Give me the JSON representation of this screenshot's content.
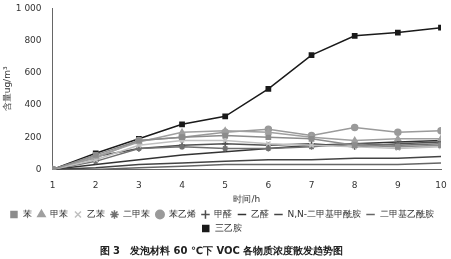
{
  "chart_data": {
    "type": "line",
    "title": "图 3　发泡材料 60 ℃下 VOC 各物质浓度散发趋势图",
    "x_label": "时间/h",
    "y_label": "含量ug/m³",
    "x": [
      1,
      2,
      3,
      4,
      5,
      6,
      7,
      8,
      9,
      10
    ],
    "xlim": [
      1,
      10
    ],
    "xticks": [
      1,
      2,
      3,
      4,
      5,
      6,
      7,
      8,
      9,
      10
    ],
    "ylim": [
      0,
      1000
    ],
    "yticks": [
      0,
      200,
      400,
      600,
      800,
      {
        "value": 1000,
        "label": "1 000"
      }
    ],
    "grid": false,
    "legend": "bottom",
    "series": [
      {
        "name": "苯",
        "color": "#8c8c8c",
        "marker": "square",
        "values": [
          0,
          90,
          180,
          200,
          210,
          200,
          190,
          150,
          140,
          150
        ]
      },
      {
        "name": "甲苯",
        "color": "#a0a0a0",
        "marker": "triangle",
        "values": [
          0,
          80,
          170,
          230,
          240,
          230,
          200,
          180,
          190,
          190
        ]
      },
      {
        "name": "乙苯",
        "color": "#c0c0c0",
        "marker": "x",
        "values": [
          0,
          60,
          150,
          180,
          180,
          160,
          150,
          140,
          130,
          140
        ]
      },
      {
        "name": "二甲苯",
        "color": "#707070",
        "marker": "star",
        "values": [
          0,
          50,
          130,
          140,
          130,
          130,
          140,
          160,
          150,
          160
        ]
      },
      {
        "name": "苯乙烯",
        "color": "#9a9a9a",
        "marker": "circle",
        "values": [
          0,
          70,
          180,
          200,
          230,
          250,
          210,
          260,
          230,
          240
        ]
      },
      {
        "name": "甲醛",
        "color": "#505050",
        "marker": "plus",
        "values": [
          0,
          80,
          130,
          150,
          160,
          150,
          160,
          140,
          160,
          170
        ]
      },
      {
        "name": "乙醛",
        "color": "#333333",
        "marker": "none",
        "values": [
          0,
          30,
          60,
          90,
          110,
          130,
          150,
          160,
          170,
          180
        ]
      },
      {
        "name": "N,N-二甲基甲酰胺",
        "color": "#444444",
        "marker": "none",
        "values": [
          0,
          10,
          30,
          40,
          50,
          60,
          60,
          70,
          70,
          80
        ]
      },
      {
        "name": "二甲基乙酰胺",
        "color": "#666666",
        "marker": "none",
        "values": [
          0,
          0,
          10,
          20,
          30,
          30,
          30,
          30,
          30,
          40
        ]
      },
      {
        "name": "三乙胺",
        "color": "#1a1a1a",
        "marker": "square",
        "values": [
          0,
          100,
          190,
          280,
          330,
          500,
          710,
          830,
          850,
          880
        ]
      }
    ]
  }
}
